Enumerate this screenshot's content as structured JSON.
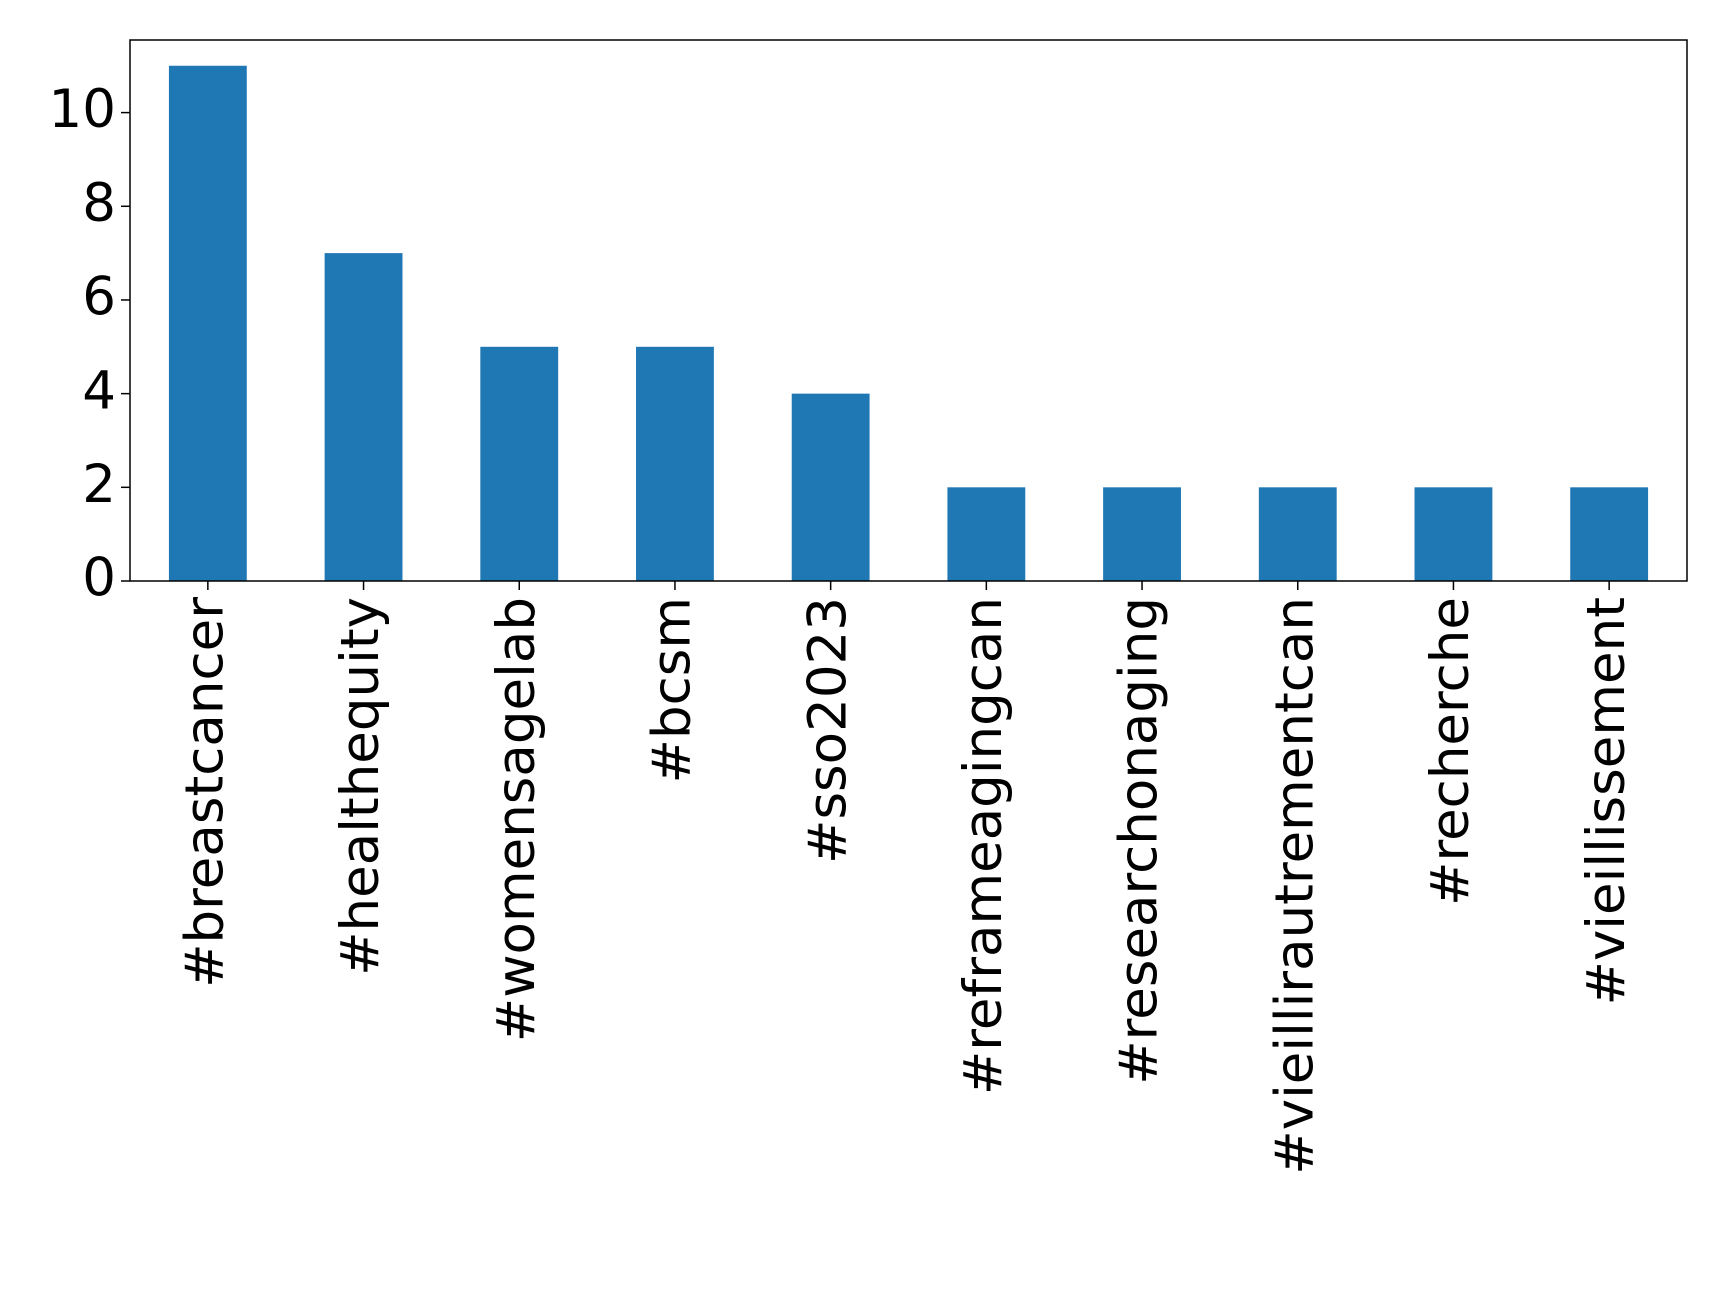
{
  "chart_data": {
    "type": "bar",
    "categories": [
      "#breastcancer",
      "#healthequity",
      "#womensagelab",
      "#bcsm",
      "#sso2023",
      "#reframeagingcan",
      "#researchonaging",
      "#vieillirautrementcan",
      "#recherche",
      "#vieillissement"
    ],
    "values": [
      11,
      7,
      5,
      5,
      4,
      2,
      2,
      2,
      2,
      2
    ],
    "color": "#1f77b4",
    "ylim": [
      0,
      11.55
    ],
    "yticks": [
      0,
      2,
      4,
      6,
      8,
      10
    ],
    "grid": false
  }
}
